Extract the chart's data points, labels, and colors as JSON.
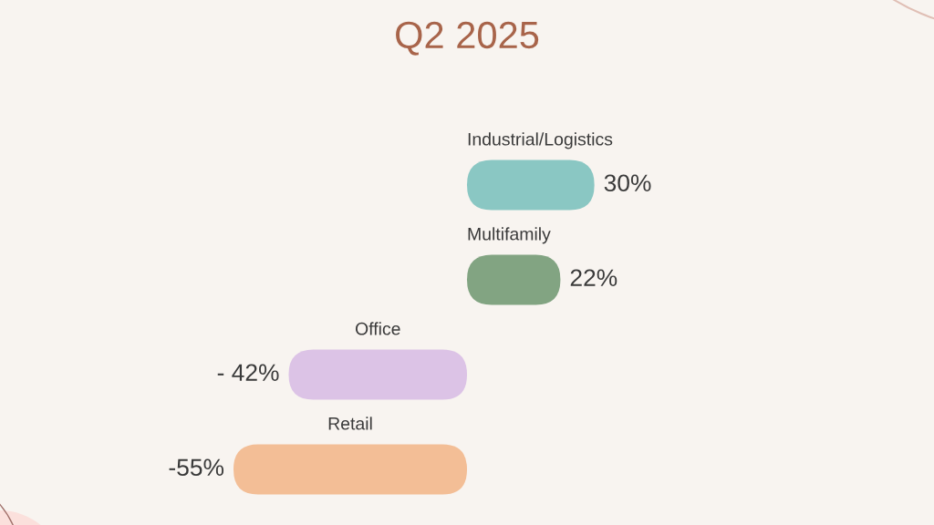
{
  "chart_data": {
    "type": "bar",
    "orientation": "horizontal",
    "title": "Q2 2025",
    "categories": [
      "Industrial/Logistics",
      "Multifamily",
      "Office",
      "Retail"
    ],
    "values": [
      30,
      22,
      -42,
      -55
    ],
    "colors": [
      "#8ac7c3",
      "#82a482",
      "#dcc3e6",
      "#f3be96"
    ],
    "value_labels": [
      "30%",
      "22%",
      "- 42%",
      "-55%"
    ],
    "tick_labels": "y"
  }
}
